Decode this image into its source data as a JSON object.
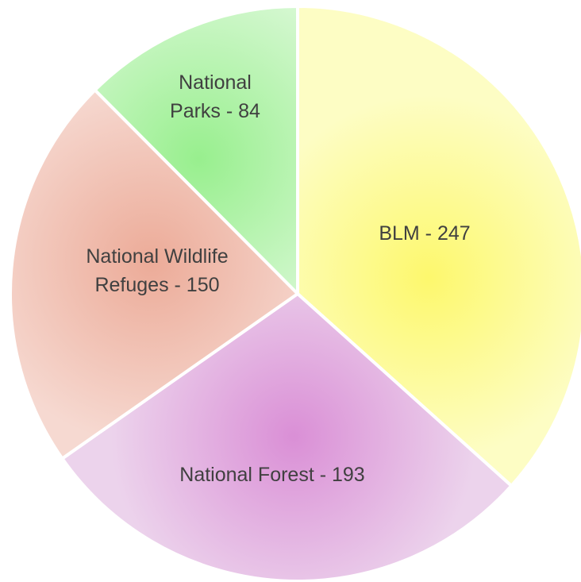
{
  "chart_data": {
    "type": "pie",
    "title": "",
    "slices": [
      {
        "label": "BLM - 247",
        "category": "BLM",
        "value": 247,
        "color": "#fdf86d",
        "edge": "#fdfdc4"
      },
      {
        "label": "National Forest - 193",
        "category": "National Forest",
        "value": 193,
        "color": "#da8fd6",
        "edge": "#ecd3ec"
      },
      {
        "label": "National Wildlife Refuges - 150",
        "category": "National Wildlife Refuges",
        "value": 150,
        "color": "#ecab98",
        "edge": "#f6d9d1"
      },
      {
        "label": "National Parks - 84",
        "category": "National Parks",
        "value": 84,
        "color": "#98ef8e",
        "edge": "#d6f8d2"
      }
    ],
    "legend": "none",
    "grid": false
  }
}
